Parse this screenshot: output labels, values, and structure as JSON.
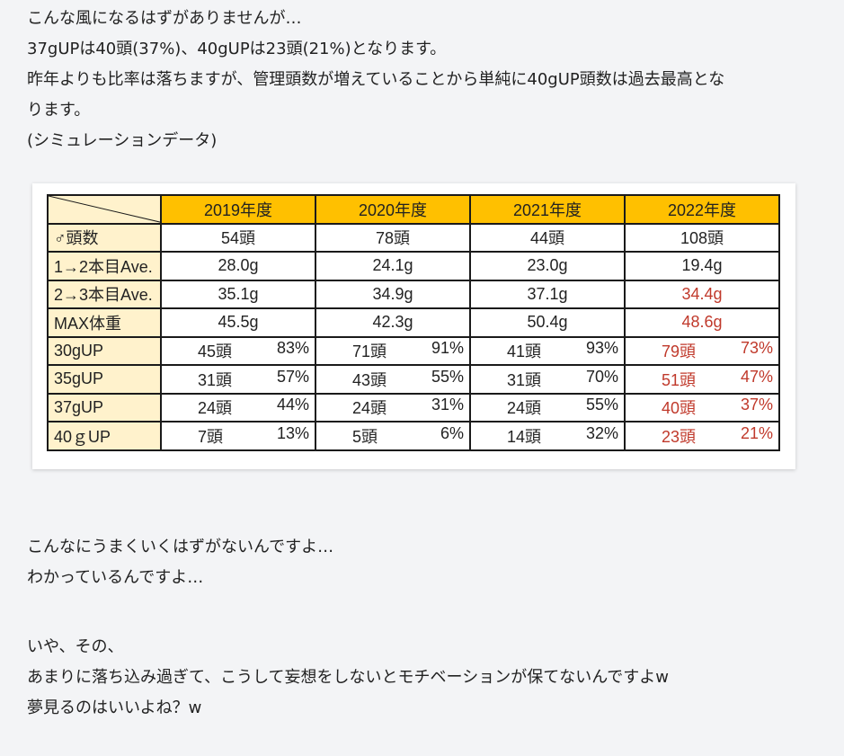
{
  "intro": [
    "こんな風になるはずがありませんが…",
    "37gUPは40頭(37%)、40gUPは23頭(21%)となります。",
    "昨年よりも比率は落ちますが、管理頭数が増えていることから単純に40gUP頭数は過去最高とな",
    "ります。",
    "(シミュレーションデータ)"
  ],
  "table": {
    "headers": [
      "2019年度",
      "2020年度",
      "2021年度",
      "2022年度"
    ],
    "single_rows": [
      {
        "label": "♂頭数",
        "values": [
          "54頭",
          "78頭",
          "44頭",
          "108頭"
        ]
      },
      {
        "label": "1→2本目Ave.",
        "values": [
          "28.0g",
          "24.1g",
          "23.0g",
          "19.4g"
        ]
      },
      {
        "label": "2→3本目Ave.",
        "values": [
          "35.1g",
          "34.9g",
          "37.1g",
          "34.4g"
        ]
      },
      {
        "label": "MAX体重",
        "values": [
          "45.5g",
          "42.3g",
          "50.4g",
          "48.6g"
        ]
      }
    ],
    "pair_rows": [
      {
        "label": "30gUP",
        "values": [
          [
            "45頭",
            "83%"
          ],
          [
            "71頭",
            "91%"
          ],
          [
            "41頭",
            "93%"
          ],
          [
            "79頭",
            "73%"
          ]
        ]
      },
      {
        "label": "35gUP",
        "values": [
          [
            "31頭",
            "57%"
          ],
          [
            "43頭",
            "55%"
          ],
          [
            "31頭",
            "70%"
          ],
          [
            "51頭",
            "47%"
          ]
        ]
      },
      {
        "label": "37gUP",
        "values": [
          [
            "24頭",
            "44%"
          ],
          [
            "24頭",
            "31%"
          ],
          [
            "24頭",
            "55%"
          ],
          [
            "40頭",
            "37%"
          ]
        ]
      },
      {
        "label": "40ｇUP",
        "values": [
          [
            "7頭",
            "13%"
          ],
          [
            "5頭",
            "6%"
          ],
          [
            "14頭",
            "32%"
          ],
          [
            "23頭",
            "21%"
          ]
        ]
      }
    ],
    "highlight_color": "#c0392b",
    "header_color": "#ffc000",
    "label_color": "#fff2cc"
  },
  "outro1": [
    "こんなにうまくいくはずがないんですよ…",
    "わかっているんですよ…"
  ],
  "outro2": [
    "いや、その、",
    "あまりに落ち込み過ぎて、こうして妄想をしないとモチベーションが保てないんですよw",
    "夢見るのはいいよね？w"
  ]
}
